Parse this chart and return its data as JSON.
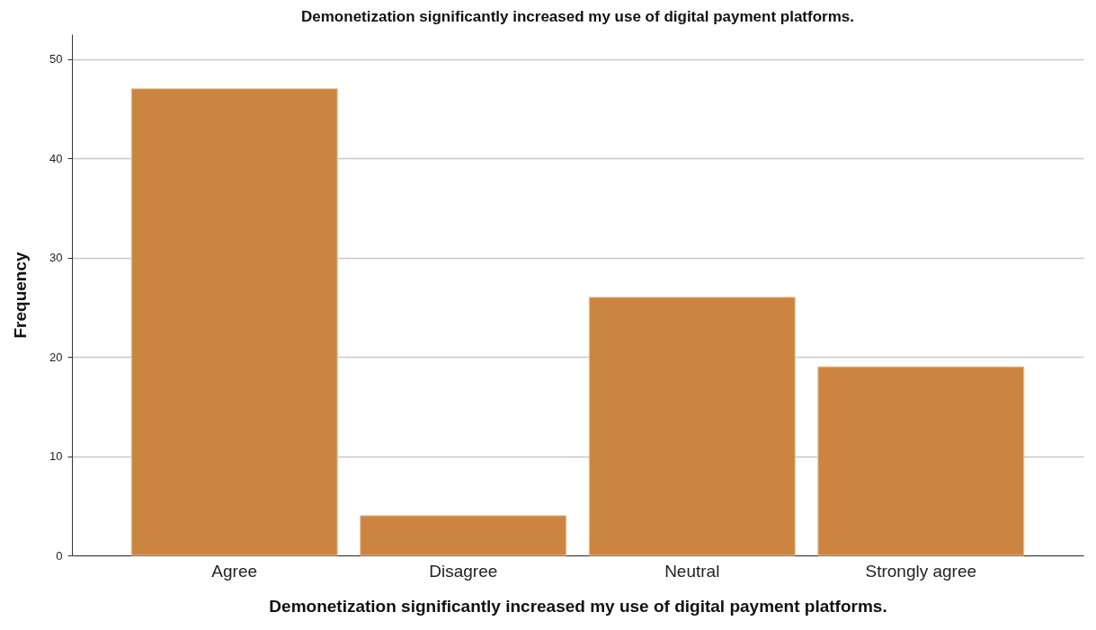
{
  "chart_data": {
    "type": "bar",
    "title": "Demonetization significantly increased my use of digital payment platforms.",
    "xlabel": "Demonetization significantly increased my use of digital payment platforms.",
    "ylabel": "Frequency",
    "categories": [
      "Agree",
      "Disagree",
      "Neutral",
      "Strongly agree"
    ],
    "values": [
      47,
      4,
      26,
      19
    ],
    "color": "#cc8540",
    "ylim": [
      0,
      52.5
    ],
    "yticks": [
      0,
      10,
      20,
      30,
      40,
      50
    ],
    "grid": "y"
  }
}
